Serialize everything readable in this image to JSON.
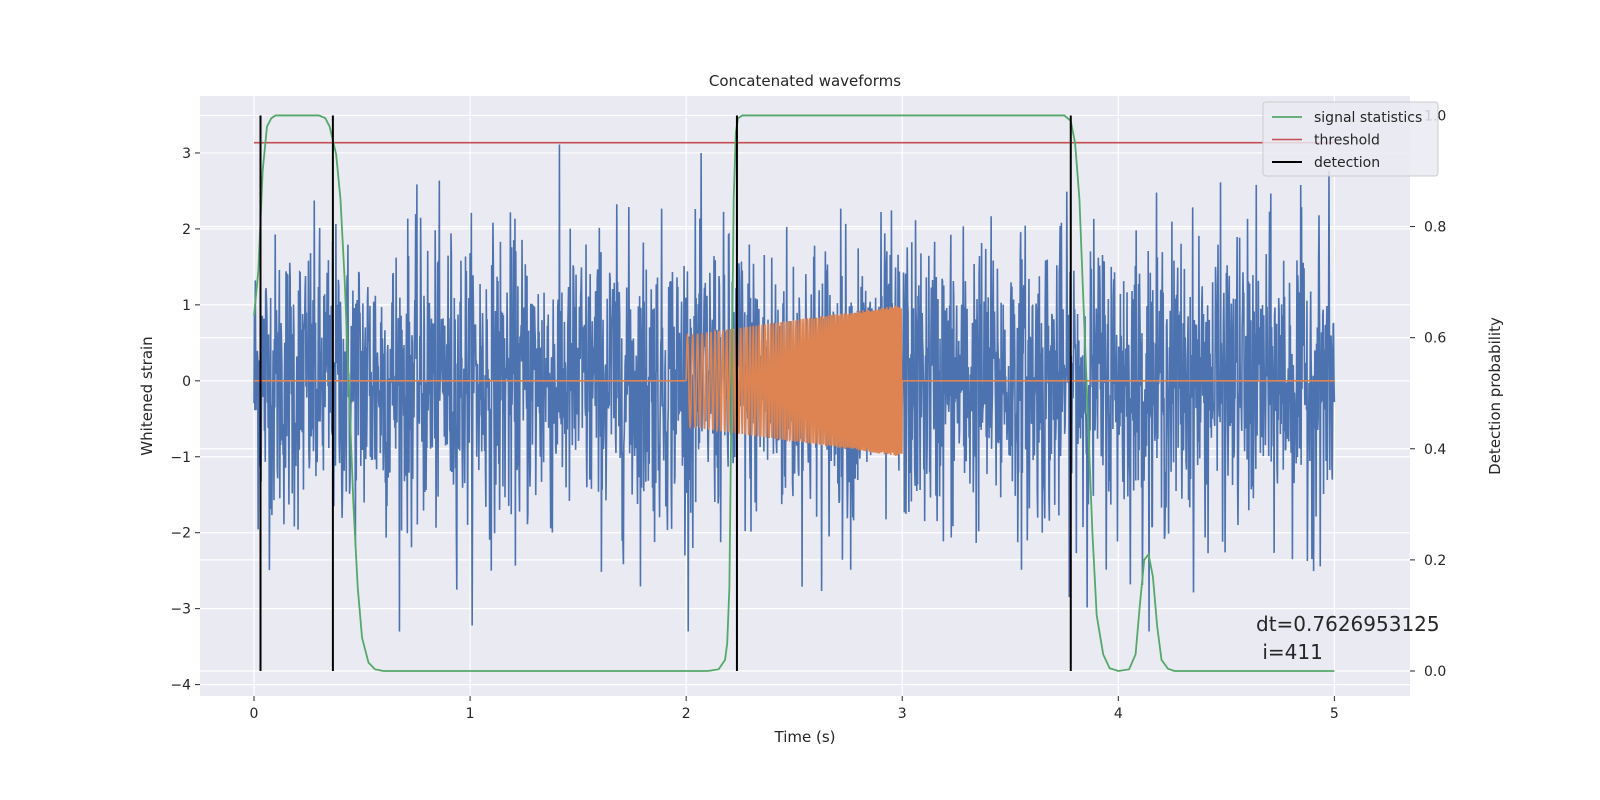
{
  "chart_data": {
    "type": "line",
    "title": "Concatenated waveforms",
    "xlabel": "Time (s)",
    "ylabel": "Whitened strain",
    "y2label": "Detection probability",
    "xlim": [
      -0.25,
      5.35
    ],
    "ylim": [
      -4.15,
      3.75
    ],
    "y2lim": [
      -0.045,
      1.035
    ],
    "xticks": [
      0,
      1,
      2,
      3,
      4,
      5
    ],
    "yticks": [
      -4,
      -3,
      -2,
      -1,
      0,
      1,
      2,
      3
    ],
    "y2ticks": [
      0.0,
      0.2,
      0.4,
      0.6,
      0.8,
      1.0
    ],
    "xtick_labels": [
      "0",
      "1",
      "2",
      "3",
      "4",
      "5"
    ],
    "ytick_labels": [
      "−4",
      "−3",
      "−2",
      "−1",
      "0",
      "1",
      "2",
      "3"
    ],
    "y2tick_labels": [
      "0.0",
      "0.2",
      "0.4",
      "0.6",
      "0.8",
      "1.0"
    ],
    "grid": true,
    "legend_position": "top-right",
    "colors": {
      "strain": "#4c72b0",
      "injection": "#dd8452",
      "signal": "#55a868",
      "threshold": "#c44e52",
      "detection": "#000000",
      "background": "#eaeaf2",
      "grid": "#ffffff"
    },
    "series": [
      {
        "name": "",
        "axis": "left",
        "description_kind": "whitened strain noise",
        "x_range": [
          0,
          5
        ],
        "envelope_abs_max": 3.3
      },
      {
        "name": "",
        "axis": "left",
        "x": [
          0,
          2.0,
          2.0,
          3.0,
          3.0,
          5.0
        ],
        "amplitude": [
          0,
          0,
          0.6,
          1.0,
          0,
          0
        ]
      },
      {
        "name": "signal statistics",
        "axis": "right",
        "x": [
          0.0,
          0.02,
          0.04,
          0.06,
          0.08,
          0.1,
          0.15,
          0.2,
          0.3,
          0.33,
          0.35,
          0.38,
          0.4,
          0.42,
          0.44,
          0.46,
          0.48,
          0.5,
          0.53,
          0.56,
          0.6,
          1.0,
          2.0,
          2.1,
          2.15,
          2.18,
          2.19,
          2.2,
          2.21,
          2.22,
          2.23,
          2.24,
          2.26,
          2.3,
          2.4,
          3.0,
          3.7,
          3.75,
          3.78,
          3.8,
          3.82,
          3.84,
          3.86,
          3.88,
          3.9,
          3.93,
          3.96,
          4.0,
          4.05,
          4.08,
          4.1,
          4.12,
          4.14,
          4.16,
          4.18,
          4.2,
          4.23,
          4.26,
          4.3,
          4.5,
          5.0
        ],
        "values": [
          0.64,
          0.72,
          0.9,
          0.98,
          0.995,
          1.0,
          1.0,
          1.0,
          1.0,
          0.995,
          0.98,
          0.93,
          0.85,
          0.7,
          0.5,
          0.3,
          0.15,
          0.06,
          0.015,
          0.003,
          0.0,
          0.0,
          0.0,
          0.0,
          0.003,
          0.02,
          0.05,
          0.15,
          0.5,
          0.85,
          0.97,
          0.995,
          1.0,
          1.0,
          1.0,
          1.0,
          1.0,
          1.0,
          0.99,
          0.95,
          0.85,
          0.65,
          0.45,
          0.25,
          0.1,
          0.03,
          0.005,
          0.0,
          0.003,
          0.03,
          0.12,
          0.2,
          0.21,
          0.17,
          0.08,
          0.02,
          0.004,
          0.0,
          0.0,
          0.0,
          0.0
        ]
      },
      {
        "name": "threshold",
        "axis": "right",
        "x": [
          0,
          5
        ],
        "values": [
          0.951,
          0.951
        ]
      },
      {
        "name": "detection",
        "axis": "right",
        "vlines_x": [
          0.03,
          0.365,
          2.235,
          3.78
        ],
        "ymin": 0.0,
        "ymax": 1.0
      }
    ],
    "annotation": {
      "line1": "dt=0.7626953125",
      "line2": " i=411"
    }
  }
}
